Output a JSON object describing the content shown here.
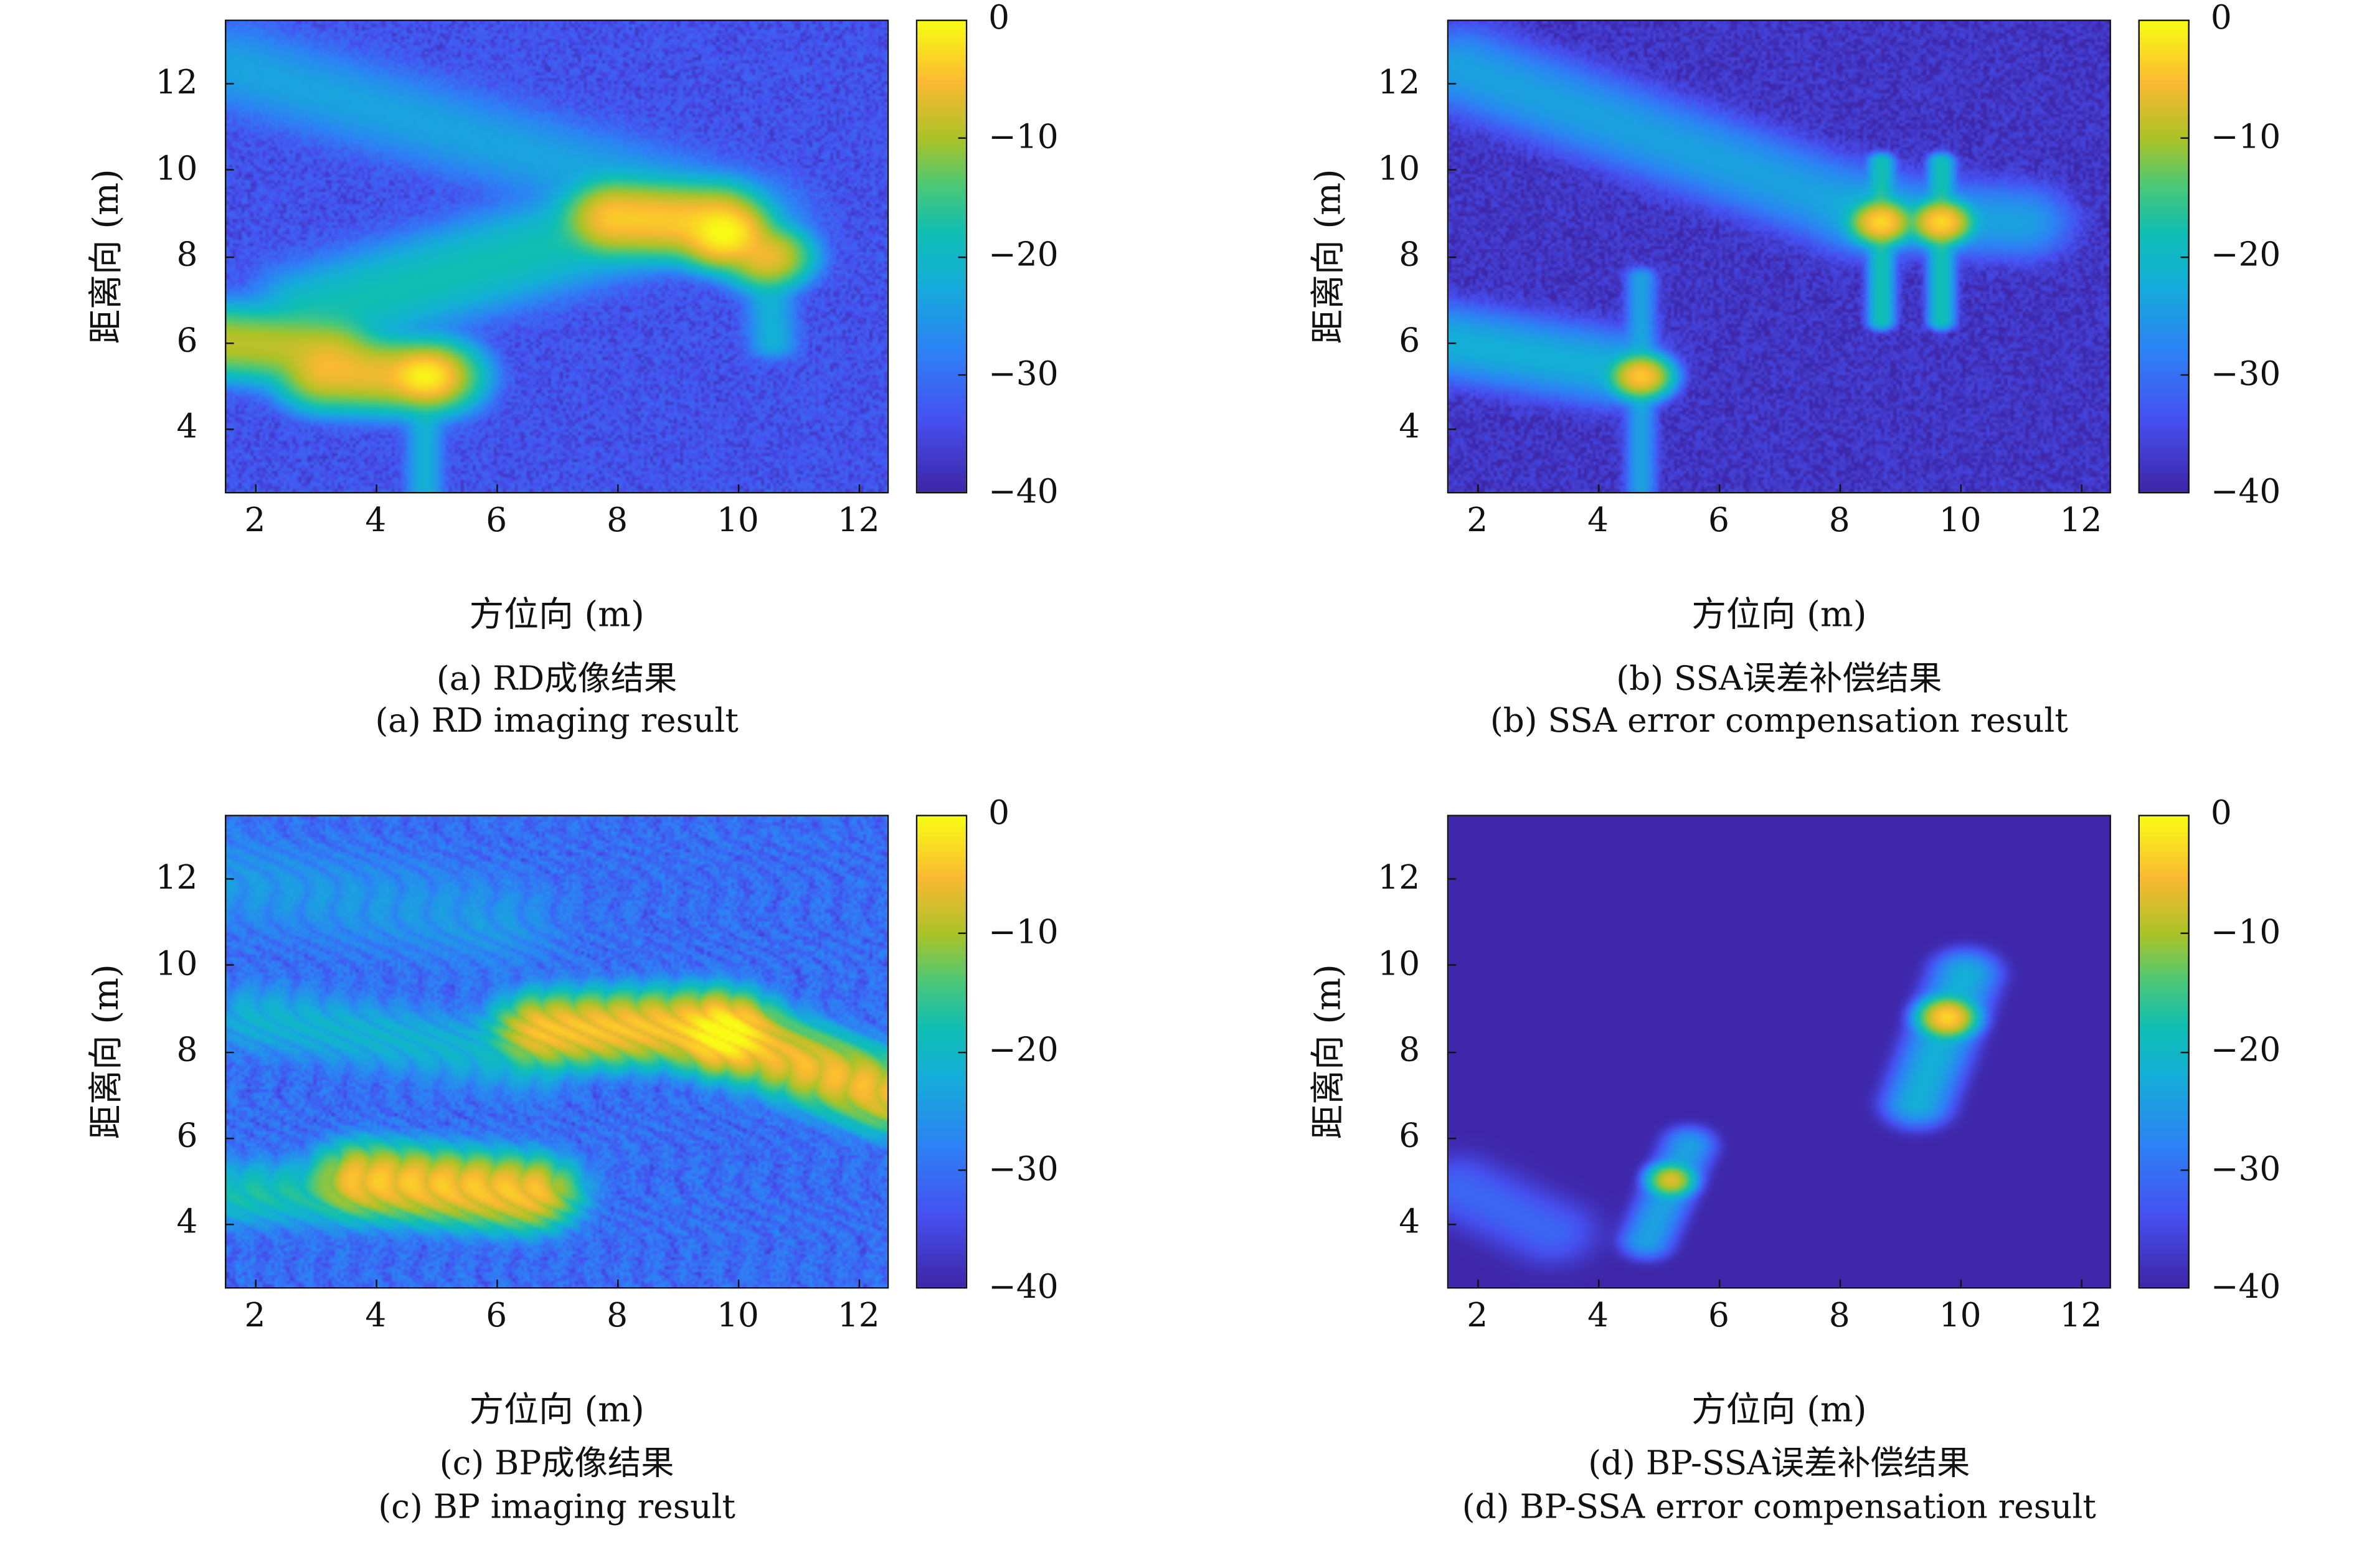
{
  "colormap": "parula",
  "colors": {
    "low": "#3e26a8",
    "mid": "#13beb8",
    "high": "#f9fb15"
  },
  "chart_data": [
    {
      "type": "heatmap",
      "caption_cn": "(a) RD成像结果",
      "caption_en": "(a) RD imaging result",
      "xlabel": "方位向 (m)",
      "ylabel": "距离向 (m)",
      "xlim": [
        1.5,
        12.5
      ],
      "ylim": [
        2.5,
        13.5
      ],
      "clim": [
        -40,
        0
      ],
      "xticks": [
        "2",
        "4",
        "6",
        "8",
        "10",
        "12"
      ],
      "yticks": [
        "4",
        "6",
        "8",
        "10",
        "12"
      ],
      "cticks": [
        "0",
        "−10",
        "−20",
        "−30",
        "−40"
      ],
      "background_db": -34,
      "features": [
        {
          "from": [
            1.7,
            12.4
          ],
          "to": [
            10.2,
            8.9
          ],
          "level_db": -24,
          "width_m": 0.5
        },
        {
          "from": [
            3.0,
            6.7
          ],
          "to": [
            8.0,
            8.7
          ],
          "level_db": -18,
          "width_m": 0.5
        },
        {
          "from": [
            8.0,
            8.9
          ],
          "to": [
            9.6,
            8.8
          ],
          "level_db": -4,
          "width_m": 0.35
        },
        {
          "from": [
            1.5,
            6.0
          ],
          "to": [
            3.2,
            5.8
          ],
          "level_db": -9,
          "width_m": 0.35
        },
        {
          "from": [
            3.2,
            5.3
          ],
          "to": [
            4.9,
            5.2
          ],
          "level_db": -6,
          "width_m": 0.35
        },
        {
          "from": [
            4.8,
            5.2
          ],
          "to": [
            4.8,
            5.2
          ],
          "level_db": -2,
          "width_m": 0.25
        },
        {
          "from": [
            9.8,
            8.5
          ],
          "to": [
            9.8,
            8.5
          ],
          "level_db": -1,
          "width_m": 0.3
        },
        {
          "from": [
            10.5,
            8.0
          ],
          "to": [
            10.5,
            8.0
          ],
          "level_db": -6,
          "width_m": 0.3
        },
        {
          "from": [
            4.8,
            5.0
          ],
          "to": [
            4.8,
            2.5
          ],
          "level_db": -22,
          "width_m": 0.15
        },
        {
          "from": [
            10.5,
            7.8
          ],
          "to": [
            10.6,
            6.0
          ],
          "level_db": -22,
          "width_m": 0.2
        }
      ]
    },
    {
      "type": "heatmap",
      "caption_cn": "(b) SSA误差补偿结果",
      "caption_en": "(b) SSA error compensation result",
      "xlabel": "方位向 (m)",
      "ylabel": "距离向 (m)",
      "xlim": [
        1.5,
        12.5
      ],
      "ylim": [
        2.5,
        13.5
      ],
      "clim": [
        -40,
        0
      ],
      "xticks": [
        "2",
        "4",
        "6",
        "8",
        "10",
        "12"
      ],
      "yticks": [
        "4",
        "6",
        "8",
        "10",
        "12"
      ],
      "cticks": [
        "0",
        "−10",
        "−20",
        "−30",
        "−40"
      ],
      "background_db": -38,
      "features": [
        {
          "from": [
            1.7,
            12.4
          ],
          "to": [
            8.5,
            9.0
          ],
          "level_db": -24,
          "width_m": 0.45
        },
        {
          "from": [
            8.5,
            9.0
          ],
          "to": [
            11.0,
            8.8
          ],
          "level_db": -24,
          "width_m": 0.4
        },
        {
          "from": [
            1.5,
            6.0
          ],
          "to": [
            4.2,
            5.4
          ],
          "level_db": -22,
          "width_m": 0.4
        },
        {
          "from": [
            4.7,
            5.2
          ],
          "to": [
            4.7,
            5.2
          ],
          "level_db": -4,
          "width_m": 0.2
        },
        {
          "from": [
            4.7,
            7.5
          ],
          "to": [
            4.7,
            2.6
          ],
          "level_db": -24,
          "width_m": 0.12
        },
        {
          "from": [
            8.7,
            8.8
          ],
          "to": [
            8.7,
            8.8
          ],
          "level_db": -3,
          "width_m": 0.2
        },
        {
          "from": [
            9.7,
            8.8
          ],
          "to": [
            9.7,
            8.8
          ],
          "level_db": -3,
          "width_m": 0.2
        },
        {
          "from": [
            8.7,
            10.2
          ],
          "to": [
            8.7,
            6.5
          ],
          "level_db": -18,
          "width_m": 0.1
        },
        {
          "from": [
            9.7,
            10.2
          ],
          "to": [
            9.7,
            6.5
          ],
          "level_db": -18,
          "width_m": 0.1
        }
      ]
    },
    {
      "type": "heatmap",
      "caption_cn": "(c) BP成像结果",
      "caption_en": "(c) BP imaging result",
      "xlabel": "方位向 (m)",
      "ylabel": "距离向 (m)",
      "xlim": [
        1.5,
        12.5
      ],
      "ylim": [
        2.5,
        13.5
      ],
      "clim": [
        -40,
        0
      ],
      "xticks": [
        "2",
        "4",
        "6",
        "8",
        "10",
        "12"
      ],
      "yticks": [
        "4",
        "6",
        "8",
        "10",
        "12"
      ],
      "cticks": [
        "0",
        "−10",
        "−20",
        "−30",
        "−40"
      ],
      "background_db": -31,
      "features": [
        {
          "from": [
            6.8,
            8.5
          ],
          "to": [
            9.5,
            8.6
          ],
          "level_db": -5,
          "width_m": 0.35
        },
        {
          "from": [
            9.8,
            8.4
          ],
          "to": [
            9.8,
            8.4
          ],
          "level_db": -1,
          "width_m": 0.35
        },
        {
          "from": [
            10.0,
            8.3
          ],
          "to": [
            12.5,
            7.0
          ],
          "level_db": -6,
          "width_m": 0.35
        },
        {
          "from": [
            3.8,
            5.0
          ],
          "to": [
            6.5,
            4.7
          ],
          "level_db": -5,
          "width_m": 0.35
        },
        {
          "from": [
            1.8,
            4.7
          ],
          "to": [
            3.5,
            4.7
          ],
          "level_db": -18,
          "width_m": 0.35
        },
        {
          "from": [
            2.0,
            8.8
          ],
          "to": [
            6.5,
            7.8
          ],
          "level_db": -22,
          "width_m": 0.4
        },
        {
          "from": [
            1.5,
            12.0
          ],
          "to": [
            6.0,
            11.0
          ],
          "level_db": -27,
          "width_m": 0.6
        }
      ]
    },
    {
      "type": "heatmap",
      "caption_cn": "(d) BP-SSA误差补偿结果",
      "caption_en": "(d) BP-SSA error compensation result",
      "xlabel": "方位向 (m)",
      "ylabel": "距离向 (m)",
      "xlim": [
        1.5,
        12.5
      ],
      "ylim": [
        2.5,
        13.5
      ],
      "clim": [
        -40,
        0
      ],
      "xticks": [
        "2",
        "4",
        "6",
        "8",
        "10",
        "12"
      ],
      "yticks": [
        "4",
        "6",
        "8",
        "10",
        "12"
      ],
      "cticks": [
        "0",
        "−10",
        "−20",
        "−30",
        "−40"
      ],
      "background_db": -40,
      "features": [
        {
          "from": [
            9.8,
            8.8
          ],
          "to": [
            9.8,
            8.8
          ],
          "level_db": -3,
          "width_m": 0.18
        },
        {
          "from": [
            10.1,
            9.8
          ],
          "to": [
            9.3,
            6.8
          ],
          "level_db": -22,
          "width_m": 0.25
        },
        {
          "from": [
            5.2,
            5.0
          ],
          "to": [
            5.2,
            5.0
          ],
          "level_db": -7,
          "width_m": 0.15
        },
        {
          "from": [
            5.5,
            5.8
          ],
          "to": [
            4.8,
            3.6
          ],
          "level_db": -24,
          "width_m": 0.2
        },
        {
          "from": [
            1.7,
            4.8
          ],
          "to": [
            3.2,
            3.8
          ],
          "level_db": -32,
          "width_m": 0.4
        }
      ]
    }
  ]
}
